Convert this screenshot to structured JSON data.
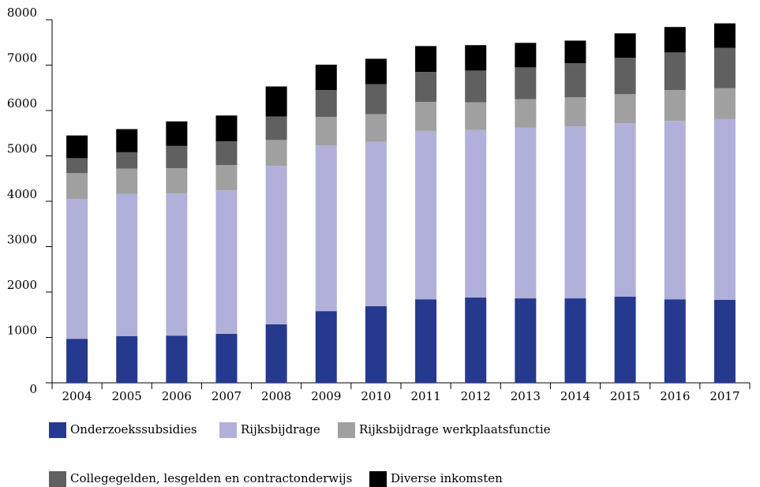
{
  "chart_data": {
    "type": "stacked_bar",
    "categories": [
      "2004",
      "2005",
      "2006",
      "2007",
      "2008",
      "2009",
      "2010",
      "2011",
      "2012",
      "2013",
      "2014",
      "2015",
      "2016",
      "2017"
    ],
    "series": [
      {
        "name": "Onderzoekssubsidies",
        "color": "#253a8e",
        "values": [
          970,
          1030,
          1040,
          1080,
          1290,
          1580,
          1690,
          1840,
          1880,
          1860,
          1860,
          1900,
          1840,
          1830
        ]
      },
      {
        "name": "Rijksbijdrage",
        "color": "#b0b0da",
        "values": [
          3080,
          3130,
          3130,
          3160,
          3490,
          3650,
          3620,
          3710,
          3690,
          3760,
          3790,
          3820,
          3930,
          3980
        ]
      },
      {
        "name": "Rijksbijdrage werkplaatsfunctie",
        "color": "#a0a0a0",
        "values": [
          570,
          560,
          560,
          560,
          570,
          630,
          610,
          640,
          610,
          630,
          640,
          640,
          680,
          680
        ]
      },
      {
        "name": "Collegegelden, lesgelden en contractonderwijs",
        "color": "#606060",
        "values": [
          330,
          360,
          490,
          520,
          520,
          590,
          660,
          660,
          700,
          700,
          750,
          800,
          830,
          890
        ]
      },
      {
        "name": "Diverse inkomsten",
        "color": "#000000",
        "values": [
          500,
          510,
          540,
          570,
          660,
          560,
          560,
          570,
          560,
          540,
          500,
          540,
          560,
          540
        ]
      }
    ],
    "ylim": [
      0,
      8000
    ],
    "yticks": [
      0,
      1000,
      2000,
      3000,
      4000,
      5000,
      6000,
      7000,
      8000
    ]
  }
}
